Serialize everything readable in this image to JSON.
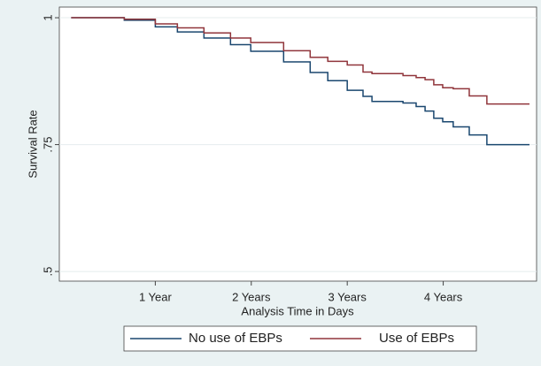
{
  "chart_data": {
    "type": "step",
    "y_label": "Survival Rate",
    "x_label": "Analysis Time in Days",
    "x": [
      45,
      247,
      365,
      449,
      550,
      651,
      728,
      853,
      954,
      1021,
      1095,
      1155,
      1189,
      1307,
      1357,
      1391,
      1424,
      1458,
      1498,
      1559,
      1626,
      1788
    ],
    "series": [
      {
        "name": "No use of EBPs",
        "color": "#1a476f",
        "values": [
          1,
          0.995,
          0.982,
          0.972,
          0.96,
          0.947,
          0.934,
          0.913,
          0.892,
          0.876,
          0.857,
          0.845,
          0.835,
          0.832,
          0.825,
          0.816,
          0.802,
          0.795,
          0.785,
          0.769,
          0.75,
          0.75
        ]
      },
      {
        "name": "Use of EBPs",
        "color": "#90353b",
        "values": [
          1,
          0.997,
          0.988,
          0.98,
          0.97,
          0.96,
          0.951,
          0.935,
          0.922,
          0.914,
          0.907,
          0.893,
          0.89,
          0.886,
          0.882,
          0.878,
          0.868,
          0.862,
          0.86,
          0.846,
          0.83,
          0.83
        ]
      }
    ],
    "xlim": [
      0,
      1815
    ],
    "ylim": [
      0.481,
      1.021
    ],
    "xticks": [
      {
        "value": 365,
        "label": "1 Year"
      },
      {
        "value": 730,
        "label": "2 Years"
      },
      {
        "value": 1095,
        "label": "3 Years"
      },
      {
        "value": 1460,
        "label": "4 Years"
      }
    ],
    "yticks": [
      {
        "value": 0.5,
        "label": ".5"
      },
      {
        "value": 0.75,
        "label": ".75"
      },
      {
        "value": 1,
        "label": "1"
      }
    ],
    "grid": true,
    "legend": "bottom"
  }
}
